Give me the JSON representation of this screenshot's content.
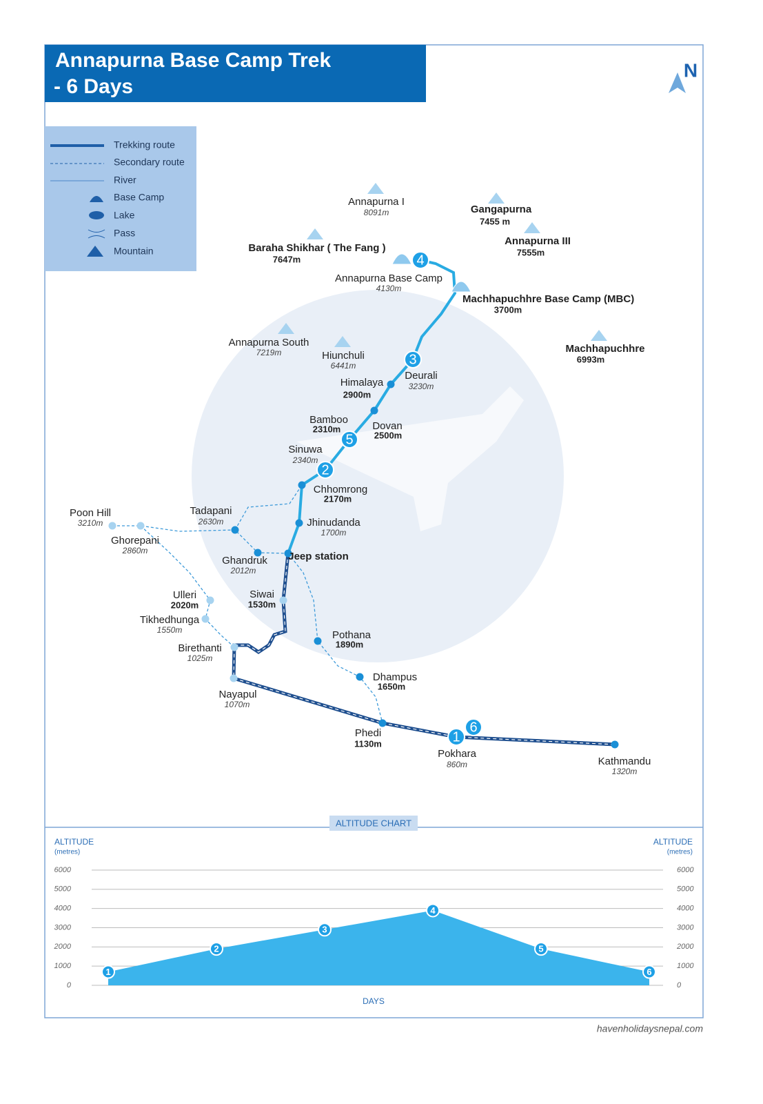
{
  "header": {
    "title_lines": [
      "Annapurna Base Camp Trek",
      "- 6 Days"
    ],
    "compass": "N"
  },
  "legend": [
    "Trekking route",
    "Secondary route",
    "River",
    "Base Camp",
    "Lake",
    "Pass",
    "Mountain"
  ],
  "mountains": [
    {
      "name": "Annapurna I",
      "altitude": "8091m"
    },
    {
      "name": "Gangapurna",
      "altitude": "7455 m"
    },
    {
      "name": "Annapurna III",
      "altitude": "7555m"
    },
    {
      "name": "Baraha Shikhar ( The Fang )",
      "altitude": "7647m"
    },
    {
      "name": "Annapurna South",
      "altitude": "7219m"
    },
    {
      "name": "Hiunchuli",
      "altitude": "6441m"
    },
    {
      "name": "Machhapuchhre",
      "altitude": "6993m"
    }
  ],
  "places": [
    {
      "name": "Annapurna Base Camp",
      "altitude": "4130m"
    },
    {
      "name": "Machhapuchhre Base Camp (MBC)",
      "altitude": "3700m"
    },
    {
      "name": "Deurali",
      "altitude": "3230m"
    },
    {
      "name": "Himalaya",
      "altitude": "2900m"
    },
    {
      "name": "Dovan",
      "altitude": "2500m"
    },
    {
      "name": "Bamboo",
      "altitude": "2310m"
    },
    {
      "name": "Sinuwa",
      "altitude": "2340m"
    },
    {
      "name": "Chhomrong",
      "altitude": "2170m"
    },
    {
      "name": "Jhinudanda",
      "altitude": "1700m"
    },
    {
      "name": "Jeep station"
    },
    {
      "name": "Tadapani",
      "altitude": "2630m"
    },
    {
      "name": "Ghandruk",
      "altitude": "2012m"
    },
    {
      "name": "Poon Hill",
      "altitude": "3210m"
    },
    {
      "name": "Ghorepani",
      "altitude": "2860m"
    },
    {
      "name": "Ulleri",
      "altitude": "2020m"
    },
    {
      "name": "Tikhedhunga",
      "altitude": "1550m"
    },
    {
      "name": "Siwai",
      "altitude": "1530m"
    },
    {
      "name": "Birethanti",
      "altitude": "1025m"
    },
    {
      "name": "Nayapul",
      "altitude": "1070m"
    },
    {
      "name": "Pothana",
      "altitude": "1890m"
    },
    {
      "name": "Dhampus",
      "altitude": "1650m"
    },
    {
      "name": "Phedi",
      "altitude": "1130m"
    },
    {
      "name": "Pokhara",
      "altitude": "860m"
    },
    {
      "name": "Kathmandu",
      "altitude": "1320m"
    }
  ],
  "altitude_chart": {
    "type": "area",
    "title": "ALTITUDE CHART",
    "y_label": "ALTITUDE",
    "y_unit": "(metres)",
    "x_label": "DAYS",
    "categories": [
      1,
      2,
      3,
      4,
      5,
      6
    ],
    "values": [
      700,
      1900,
      2900,
      3900,
      1900,
      700
    ],
    "color": "#3bb4ec",
    "ylim": [
      0,
      6000
    ],
    "yticks": [
      0,
      1000,
      2000,
      3000,
      4000,
      5000,
      6000
    ],
    "grid": true
  },
  "footer": "havenholidaysnepal.com"
}
